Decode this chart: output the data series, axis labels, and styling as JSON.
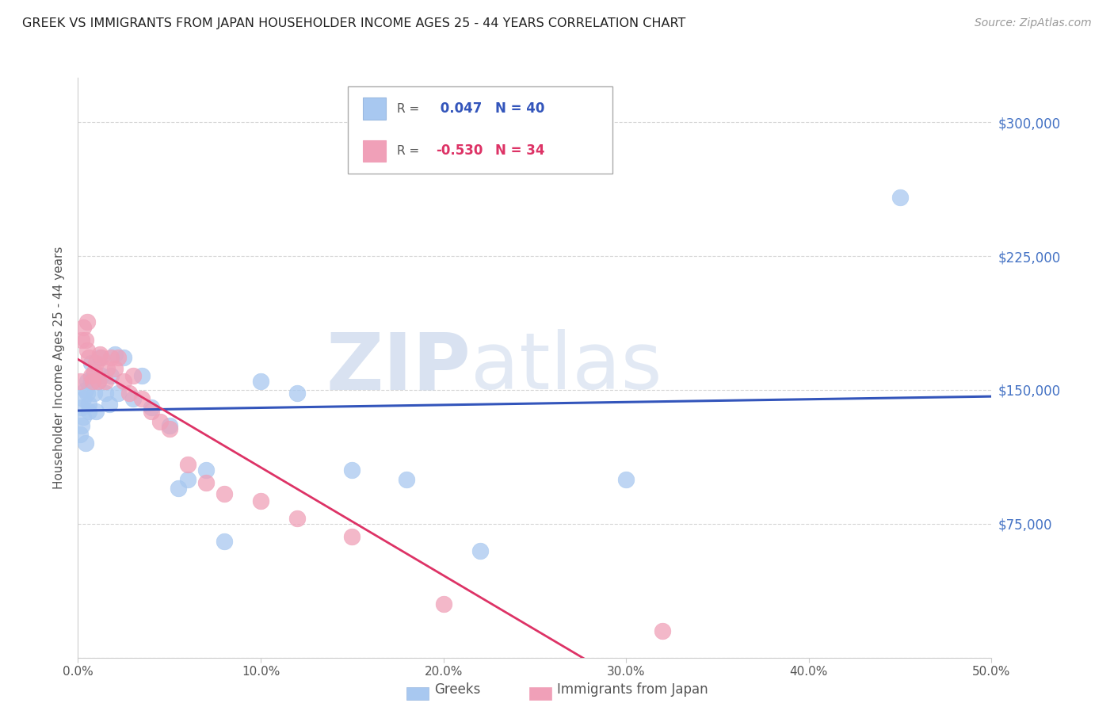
{
  "title": "GREEK VS IMMIGRANTS FROM JAPAN HOUSEHOLDER INCOME AGES 25 - 44 YEARS CORRELATION CHART",
  "source": "Source: ZipAtlas.com",
  "ylabel": "Householder Income Ages 25 - 44 years",
  "xlim": [
    0.0,
    0.5
  ],
  "ylim": [
    0,
    325000
  ],
  "yticks": [
    0,
    75000,
    150000,
    225000,
    300000
  ],
  "ytick_labels": [
    "",
    "$75,000",
    "$150,000",
    "$225,000",
    "$300,000"
  ],
  "xticks": [
    0.0,
    0.1,
    0.2,
    0.3,
    0.4,
    0.5
  ],
  "xtick_labels": [
    "0.0%",
    "10.0%",
    "20.0%",
    "30.0%",
    "40.0%",
    "50.0%"
  ],
  "grid_color": "#cccccc",
  "background_color": "#ffffff",
  "watermark": "ZIPatlas",
  "watermark_color": "#c0d0e8",
  "greek_color": "#a8c8f0",
  "japan_color": "#f0a0b8",
  "greek_R": 0.047,
  "greek_N": 40,
  "japan_R": -0.53,
  "japan_N": 34,
  "greek_line_color": "#3355bb",
  "japan_line_color": "#dd3366",
  "greek_x": [
    0.001,
    0.002,
    0.002,
    0.003,
    0.003,
    0.004,
    0.004,
    0.005,
    0.005,
    0.006,
    0.006,
    0.007,
    0.007,
    0.008,
    0.009,
    0.01,
    0.011,
    0.012,
    0.013,
    0.015,
    0.017,
    0.018,
    0.02,
    0.022,
    0.025,
    0.03,
    0.035,
    0.04,
    0.05,
    0.055,
    0.06,
    0.07,
    0.08,
    0.1,
    0.12,
    0.15,
    0.18,
    0.22,
    0.3,
    0.45
  ],
  "greek_y": [
    125000,
    130000,
    140000,
    135000,
    145000,
    150000,
    120000,
    155000,
    148000,
    142000,
    138000,
    155000,
    165000,
    158000,
    148000,
    138000,
    155000,
    168000,
    158000,
    148000,
    142000,
    158000,
    170000,
    148000,
    168000,
    145000,
    158000,
    140000,
    130000,
    95000,
    100000,
    105000,
    65000,
    155000,
    148000,
    105000,
    100000,
    60000,
    100000,
    258000
  ],
  "japan_x": [
    0.001,
    0.002,
    0.003,
    0.004,
    0.005,
    0.005,
    0.006,
    0.007,
    0.008,
    0.009,
    0.01,
    0.011,
    0.012,
    0.013,
    0.015,
    0.016,
    0.018,
    0.02,
    0.022,
    0.025,
    0.028,
    0.03,
    0.035,
    0.04,
    0.045,
    0.05,
    0.06,
    0.07,
    0.08,
    0.1,
    0.12,
    0.15,
    0.2,
    0.32
  ],
  "japan_y": [
    155000,
    178000,
    185000,
    178000,
    188000,
    172000,
    168000,
    158000,
    155000,
    160000,
    165000,
    155000,
    170000,
    168000,
    155000,
    162000,
    168000,
    162000,
    168000,
    155000,
    148000,
    158000,
    145000,
    138000,
    132000,
    128000,
    108000,
    98000,
    92000,
    88000,
    78000,
    68000,
    30000,
    15000
  ]
}
